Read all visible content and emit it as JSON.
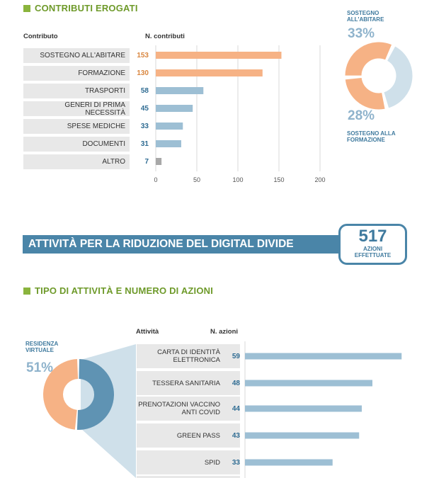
{
  "section1": {
    "title": "CONTRIBUTI EROGATI",
    "col_label": "Contributo",
    "col_value": "N. contributi"
  },
  "section2": {
    "banner": "ATTIVITÀ PER LA RIDUZIONE DEL DIGITAL DIVIDE",
    "kpi_value": "517",
    "kpi_label": "AZIONI EFFETTUATE"
  },
  "section3": {
    "title": "TIPO DI ATTIVITÀ E NUMERO DI AZIONI",
    "col_label": "Attività",
    "col_value": "N. azioni"
  },
  "donut1": {
    "top_label": "SOSTEGNO ALL'ABITARE",
    "top_pct": "33%",
    "bottom_pct": "28%",
    "bottom_label": "SOSTEGNO ALLA FORMAZIONE"
  },
  "donut2": {
    "label": "RESIDENZA VIRTUALE",
    "pct": "51%"
  },
  "colors": {
    "orange": "#f6b285",
    "blue": "#9dbfd4",
    "gray": "#a8a8a8",
    "dark_blue": "#5f93b3",
    "light_blue": "#cfe0ea",
    "green": "#8ab43d"
  },
  "chart_data": [
    {
      "type": "bar",
      "orientation": "horizontal",
      "title": "CONTRIBUTI EROGATI",
      "xlabel": "N. contributi",
      "ylabel": "Contributo",
      "categories": [
        "SOSTEGNO ALL'ABITARE",
        "FORMAZIONE",
        "TRASPORTI",
        "GENERI DI PRIMA NECESSITÀ",
        "SPESE MEDICHE",
        "DOCUMENTI",
        "ALTRO"
      ],
      "values": [
        153,
        130,
        58,
        45,
        33,
        31,
        7
      ],
      "value_labels": [
        "153",
        "130",
        "58",
        "45",
        "33",
        "31",
        "7"
      ],
      "bar_colors": [
        "orange",
        "orange",
        "blue",
        "blue",
        "blue",
        "blue",
        "gray"
      ],
      "xlim": [
        0,
        200
      ],
      "xticks": [
        0,
        50,
        100,
        150,
        200
      ],
      "xtick_labels": [
        "0",
        "50",
        "100",
        "150",
        "200"
      ],
      "grid": true
    },
    {
      "type": "pie",
      "donut": true,
      "slices": [
        {
          "label": "SOSTEGNO ALL'ABITARE",
          "value": 33
        },
        {
          "label": "SOSTEGNO ALLA FORMAZIONE",
          "value": 28
        },
        {
          "label": "",
          "value": 39
        }
      ]
    },
    {
      "type": "pie",
      "donut": true,
      "slices": [
        {
          "label": "",
          "value": 49
        },
        {
          "label": "RESIDENZA VIRTUALE",
          "value": 51
        }
      ]
    },
    {
      "type": "bar",
      "orientation": "horizontal",
      "title": "TIPO DI ATTIVITÀ E NUMERO DI AZIONI",
      "xlabel": "N. azioni",
      "ylabel": "Attività",
      "categories": [
        "CARTA DI IDENTITÀ ELETTRONICA",
        "TESSERA SANITARIA",
        "PRENOTAZIONI VACCINO ANTI COVID",
        "GREEN PASS",
        "SPID"
      ],
      "values": [
        59,
        48,
        44,
        43,
        33
      ],
      "value_labels": [
        "59",
        "48",
        "44",
        "43",
        "33"
      ],
      "bar_colors": [
        "blue",
        "blue",
        "blue",
        "blue",
        "blue"
      ],
      "xlim": [
        0,
        60
      ]
    }
  ]
}
